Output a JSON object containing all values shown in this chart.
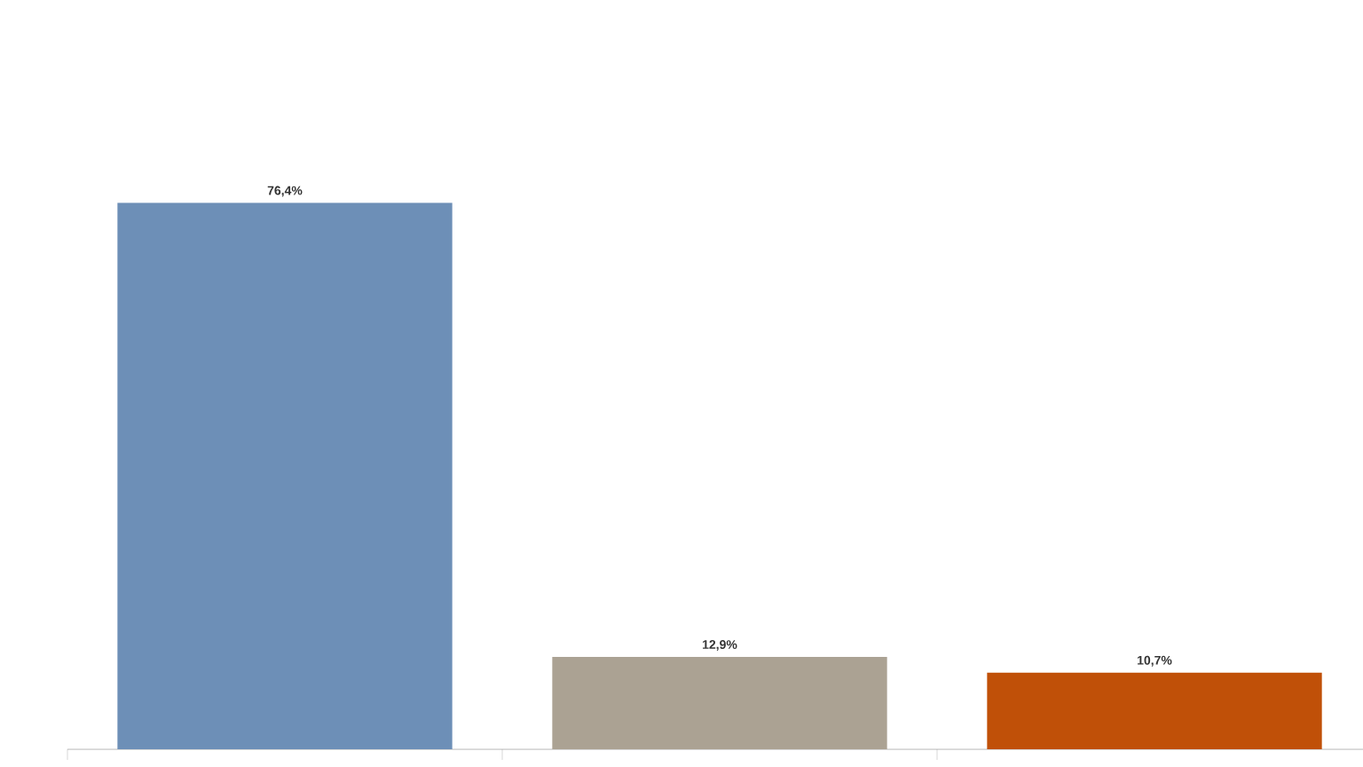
{
  "chart_data": {
    "type": "bar",
    "categories": [
      null,
      null,
      null
    ],
    "values": [
      76.4,
      12.9,
      10.7
    ],
    "colors": [
      "#6d8fb7",
      "#aba293",
      "#c05008"
    ],
    "value_labels": [
      "76,4%",
      "12,9%",
      "10,7%"
    ]
  }
}
